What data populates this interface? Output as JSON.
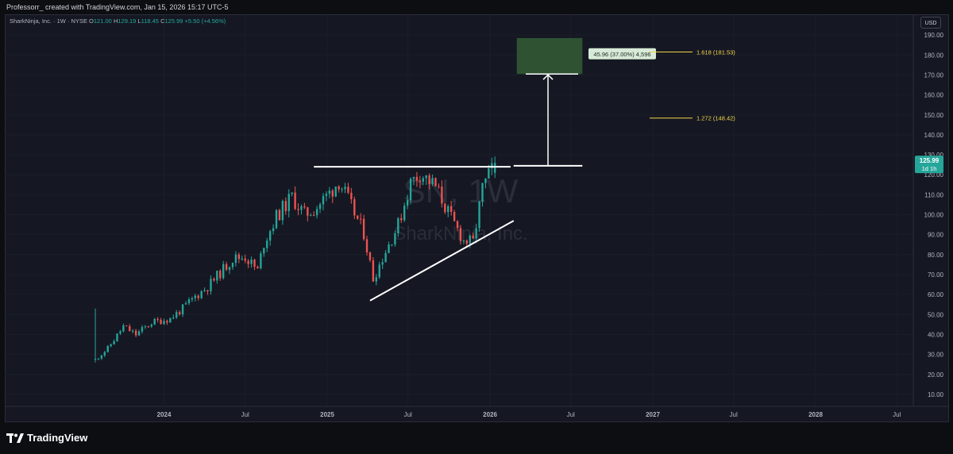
{
  "header": {
    "attribution": "Professorr_ created with TradingView.com, Jan 15, 2026 15:17 UTC-5"
  },
  "legend": {
    "symbol": "SharkNinja, Inc. · 1W · NYSE",
    "open_label": "O",
    "open": "121.00",
    "high_label": "H",
    "high": "129.19",
    "low_label": "L",
    "low": "118.45",
    "close_label": "C",
    "close": "125.99",
    "change": "+5.50 (+4.56%)"
  },
  "currency_button": "USD",
  "watermark": {
    "ticker": "SN, 1W",
    "name": "SharkNinja, Inc."
  },
  "price_badge": {
    "price": "125.99",
    "countdown": "1d 1h"
  },
  "annotations": {
    "fib_1618": "1.618 (181.53)",
    "fib_1272": "1.272 (148.42)",
    "measure": "45.96 (37.00%) 4,596"
  },
  "colors": {
    "up": "#26a69a",
    "down": "#ef5350",
    "background": "#151823",
    "fib_label": "#f5d547",
    "target_box": "#2e5232"
  },
  "footer": {
    "brand": "TradingView",
    "logo_icon": "tradingview-logo-icon"
  },
  "chart_data": {
    "type": "candlestick",
    "timeframe": "1W",
    "y_axis": {
      "ticks": [
        "10.00",
        "20.00",
        "30.00",
        "40.00",
        "50.00",
        "60.00",
        "70.00",
        "80.00",
        "90.00",
        "100.00",
        "110.00",
        "120.00",
        "130.00",
        "140.00",
        "150.00",
        "160.00",
        "170.00",
        "180.00",
        "190.00"
      ],
      "range": [
        4,
        200
      ]
    },
    "x_axis": {
      "ticks": [
        {
          "label": "2024",
          "date": "2024-01-01"
        },
        {
          "label": "Jul",
          "date": "2024-07-01"
        },
        {
          "label": "2025",
          "date": "2025-01-01"
        },
        {
          "label": "Jul",
          "date": "2025-07-01"
        },
        {
          "label": "2026",
          "date": "2026-01-01"
        },
        {
          "label": "Jul",
          "date": "2026-07-01"
        },
        {
          "label": "2027",
          "date": "2027-01-01"
        },
        {
          "label": "Jul",
          "date": "2027-07-01"
        },
        {
          "label": "2028",
          "date": "2028-01-01"
        },
        {
          "label": "Jul",
          "date": "2028-07-01"
        }
      ],
      "range": [
        "2023-01-09",
        "2028-08-07"
      ]
    },
    "price_path": [
      [
        "2023-07-31",
        27.5
      ],
      [
        "2023-08-28",
        33
      ],
      [
        "2023-10-02",
        44
      ],
      [
        "2023-10-30",
        40
      ],
      [
        "2023-12-04",
        46
      ],
      [
        "2024-01-15",
        48
      ],
      [
        "2024-02-12",
        53
      ],
      [
        "2024-03-11",
        59
      ],
      [
        "2024-04-08",
        64
      ],
      [
        "2024-05-06",
        71
      ],
      [
        "2024-06-03",
        78
      ],
      [
        "2024-07-01",
        79
      ],
      [
        "2024-07-29",
        72
      ],
      [
        "2024-08-12",
        86
      ],
      [
        "2024-09-09",
        99
      ],
      [
        "2024-10-14",
        109
      ],
      [
        "2024-11-11",
        100
      ],
      [
        "2024-12-09",
        104
      ],
      [
        "2025-01-06",
        111
      ],
      [
        "2025-01-27",
        117
      ],
      [
        "2025-02-24",
        104
      ],
      [
        "2025-03-24",
        91
      ],
      [
        "2025-04-14",
        68
      ],
      [
        "2025-05-12",
        82
      ],
      [
        "2025-06-09",
        95
      ],
      [
        "2025-07-07",
        116
      ],
      [
        "2025-07-28",
        121
      ],
      [
        "2025-09-01",
        114
      ],
      [
        "2025-10-06",
        98
      ],
      [
        "2025-11-03",
        87
      ],
      [
        "2025-11-24",
        86
      ],
      [
        "2025-12-15",
        113
      ],
      [
        "2026-01-12",
        125.99
      ]
    ],
    "last": {
      "open": 121.0,
      "high": 129.19,
      "low": 118.45,
      "close": 125.99,
      "change": 5.5,
      "change_pct": 4.56
    },
    "drawings": {
      "resistance": {
        "price": 124,
        "from": "2024-12-02",
        "to": "2026-02-16"
      },
      "support": {
        "from": [
          "2025-04-07",
          57
        ],
        "to": [
          "2026-02-23",
          97
        ]
      },
      "measure": {
        "base_price": 124.5,
        "top_price": 170.5,
        "from": "2026-02-23",
        "to": "2026-07-27"
      },
      "fib_1618": {
        "price": 181.53
      },
      "fib_1272": {
        "price": 148.42
      },
      "target_zone": {
        "low": 170.5,
        "high": 188.5,
        "from": "2026-03-02",
        "to": "2026-07-27"
      }
    }
  }
}
